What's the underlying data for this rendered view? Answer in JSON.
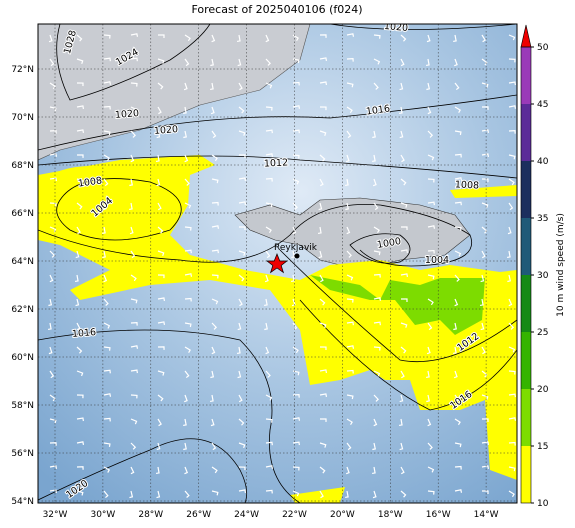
{
  "title": "Forecast of 2025040106 (f024)",
  "lat_labels": [
    "72°N",
    "70°N",
    "68°N",
    "66°N",
    "64°N",
    "62°N",
    "60°N",
    "58°N",
    "56°N",
    "54°N"
  ],
  "lon_labels": [
    "32°W",
    "30°W",
    "28°W",
    "26°W",
    "24°W",
    "22°W",
    "20°W",
    "18°W",
    "16°W",
    "14°W"
  ],
  "isobar_labels": [
    "1028",
    "1024",
    "1020",
    "1020",
    "1020",
    "1016",
    "1012",
    "1008",
    "1004",
    "1008",
    "1000",
    "1004",
    "1016",
    "1012",
    "1016",
    "1020"
  ],
  "place": "Reykjavik",
  "colorbar": {
    "label": "10 m wind speed (m/s)",
    "lim": [
      10,
      50
    ],
    "ticks": [
      10,
      15,
      20,
      25,
      30,
      35,
      40,
      45,
      50
    ],
    "colors": [
      "#ffff00",
      "#7ddc00",
      "#35b400",
      "#168a16",
      "#1f5a78",
      "#1c2f5e",
      "#5b2b98",
      "#9a3ab8"
    ],
    "extend_color": "#ee0000"
  }
}
